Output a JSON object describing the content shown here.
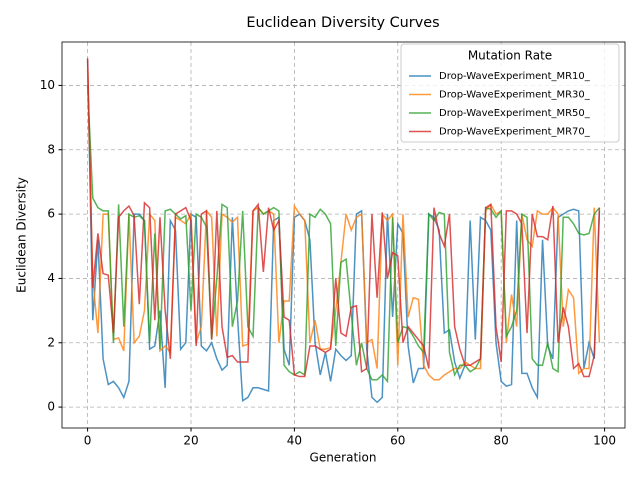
{
  "chart_data": {
    "type": "line",
    "title": "Euclidean Diversity Curves",
    "xlabel": "Generation",
    "ylabel": "Euclidean Diversity",
    "x": [
      0,
      1,
      2,
      3,
      4,
      5,
      6,
      7,
      8,
      9,
      10,
      11,
      12,
      13,
      14,
      15,
      16,
      17,
      18,
      19,
      20,
      21,
      22,
      23,
      24,
      25,
      26,
      27,
      28,
      29,
      30,
      31,
      32,
      33,
      34,
      35,
      36,
      37,
      38,
      39,
      40,
      41,
      42,
      43,
      44,
      45,
      46,
      47,
      48,
      49,
      50,
      51,
      52,
      53,
      54,
      55,
      56,
      57,
      58,
      59,
      60,
      61,
      62,
      63,
      64,
      65,
      66,
      67,
      68,
      69,
      70,
      71,
      72,
      73,
      74,
      75,
      76,
      77,
      78,
      79,
      80,
      81,
      82,
      83,
      84,
      85,
      86,
      87,
      88,
      89,
      90,
      91,
      92,
      93,
      94,
      95,
      96,
      97,
      98,
      99
    ],
    "series": [
      {
        "name": "Drop-WaveExperiment_MR10_",
        "color": "#1f77b4",
        "values": [
          10.8,
          2.7,
          5.2,
          1.5,
          0.7,
          0.8,
          0.6,
          0.3,
          0.8,
          6.0,
          6.0,
          5.8,
          1.8,
          1.9,
          3.0,
          0.6,
          5.8,
          5.5,
          1.8,
          2.0,
          6.0,
          5.9,
          1.9,
          1.75,
          2.0,
          1.5,
          1.15,
          1.3,
          5.9,
          2.8,
          0.2,
          0.3,
          0.6,
          0.6,
          0.55,
          0.5,
          5.8,
          5.9,
          1.8,
          1.3,
          5.9,
          6.0,
          5.8,
          5.2,
          2.0,
          1.0,
          1.7,
          0.8,
          1.8,
          1.6,
          1.45,
          1.6,
          6.0,
          6.1,
          1.8,
          0.3,
          0.15,
          0.3,
          6.0,
          2.8,
          5.7,
          5.4,
          1.9,
          0.75,
          1.2,
          1.2,
          6.0,
          5.9,
          5.5,
          2.3,
          2.4,
          1.4,
          0.9,
          1.3,
          5.8,
          2.1,
          5.9,
          5.8,
          5.5,
          2.0,
          0.8,
          0.65,
          0.7,
          5.8,
          1.05,
          1.05,
          0.6,
          0.3,
          5.2,
          1.9,
          1.5,
          5.9,
          6.0,
          6.1,
          6.15,
          6.1,
          1.2,
          2.0,
          1.5,
          6.1
        ]
      },
      {
        "name": "Drop-WaveExperiment_MR30_",
        "color": "#ff7f0e",
        "values": [
          10.5,
          4.0,
          2.3,
          6.0,
          6.0,
          2.1,
          2.15,
          1.75,
          6.0,
          2.0,
          2.2,
          3.0,
          6.0,
          5.8,
          1.75,
          1.9,
          1.7,
          5.9,
          5.8,
          5.7,
          6.0,
          2.0,
          2.5,
          6.1,
          5.9,
          2.2,
          6.0,
          5.9,
          5.75,
          5.9,
          1.9,
          1.95,
          6.1,
          6.2,
          6.0,
          6.1,
          6.0,
          2.0,
          3.3,
          3.3,
          6.25,
          6.0,
          5.8,
          2.0,
          2.7,
          1.8,
          1.8,
          1.85,
          3.0,
          4.5,
          6.0,
          5.5,
          5.9,
          6.0,
          2.0,
          2.1,
          1.2,
          6.0,
          5.8,
          6.0,
          1.3,
          6.0,
          2.8,
          3.4,
          3.35,
          1.3,
          1.0,
          0.85,
          0.85,
          1.0,
          1.1,
          1.2,
          1.2,
          1.4,
          1.3,
          1.2,
          1.2,
          6.1,
          6.3,
          6.0,
          6.1,
          2.0,
          3.5,
          2.5,
          6.0,
          5.2,
          5.0,
          6.1,
          6.0,
          6.0,
          6.2,
          6.0,
          2.5,
          3.65,
          3.4,
          1.05,
          1.2,
          1.2,
          6.2,
          2.0
        ]
      },
      {
        "name": "Drop-WaveExperiment_MR50_",
        "color": "#2ca02c",
        "values": [
          10.0,
          6.5,
          6.2,
          6.1,
          6.1,
          2.0,
          6.3,
          2.5,
          6.0,
          5.9,
          5.95,
          5.8,
          2.0,
          5.4,
          1.8,
          6.1,
          6.15,
          6.0,
          5.85,
          5.95,
          3.0,
          6.0,
          5.9,
          5.6,
          2.1,
          4.0,
          6.3,
          6.2,
          2.5,
          3.3,
          6.1,
          2.5,
          2.2,
          6.2,
          6.0,
          6.1,
          6.2,
          6.1,
          1.3,
          1.1,
          1.0,
          1.1,
          1.0,
          6.0,
          5.9,
          6.15,
          6.0,
          5.7,
          1.9,
          4.5,
          4.6,
          2.9,
          1.3,
          2.0,
          1.2,
          0.85,
          0.85,
          1.0,
          0.8,
          5.9,
          2.0,
          2.5,
          2.45,
          2.2,
          1.9,
          1.7,
          6.0,
          5.8,
          6.05,
          6.0,
          1.7,
          1.0,
          1.3,
          1.3,
          1.1,
          1.2,
          1.5,
          6.2,
          6.15,
          5.9,
          6.1,
          2.2,
          2.5,
          3.0,
          6.0,
          5.9,
          1.5,
          1.3,
          1.3,
          2.0,
          1.2,
          1.1,
          5.9,
          5.9,
          5.7,
          5.4,
          5.35,
          5.4,
          6.0,
          6.2
        ]
      },
      {
        "name": "Drop-WaveExperiment_MR70_",
        "color": "#d62728",
        "values": [
          10.85,
          3.7,
          5.4,
          4.15,
          4.1,
          2.3,
          5.9,
          6.1,
          6.25,
          5.95,
          3.2,
          6.35,
          6.2,
          2.7,
          5.9,
          3.0,
          1.5,
          6.0,
          6.1,
          6.2,
          5.8,
          1.9,
          6.0,
          6.1,
          2.1,
          6.1,
          2.5,
          1.55,
          1.6,
          1.4,
          1.4,
          1.4,
          6.1,
          6.3,
          4.2,
          6.2,
          5.5,
          5.8,
          2.8,
          2.7,
          1.0,
          0.95,
          0.95,
          1.9,
          1.9,
          1.8,
          1.7,
          1.8,
          4.0,
          2.3,
          2.2,
          3.1,
          3.15,
          1.1,
          1.2,
          6.0,
          3.4,
          6.05,
          4.0,
          4.8,
          4.7,
          2.0,
          2.5,
          2.3,
          2.1,
          1.9,
          1.2,
          6.2,
          5.4,
          5.0,
          6.0,
          2.5,
          1.8,
          1.3,
          1.3,
          1.4,
          1.5,
          6.2,
          6.3,
          2.5,
          1.4,
          6.1,
          6.1,
          6.0,
          5.7,
          2.3,
          6.0,
          5.3,
          5.3,
          5.2,
          6.25,
          2.0,
          3.1,
          2.5,
          1.2,
          1.35,
          0.95,
          0.95,
          1.6,
          6.2
        ]
      }
    ],
    "xlim": [
      -4.95,
      103.95
    ],
    "ylim": [
      -0.65,
      11.35
    ],
    "xticks": [
      0,
      20,
      40,
      60,
      80,
      100
    ],
    "yticks": [
      0,
      2,
      4,
      6,
      8,
      10
    ],
    "grid": true,
    "legend": {
      "title": "Mutation Rate",
      "loc": "upper right"
    }
  }
}
